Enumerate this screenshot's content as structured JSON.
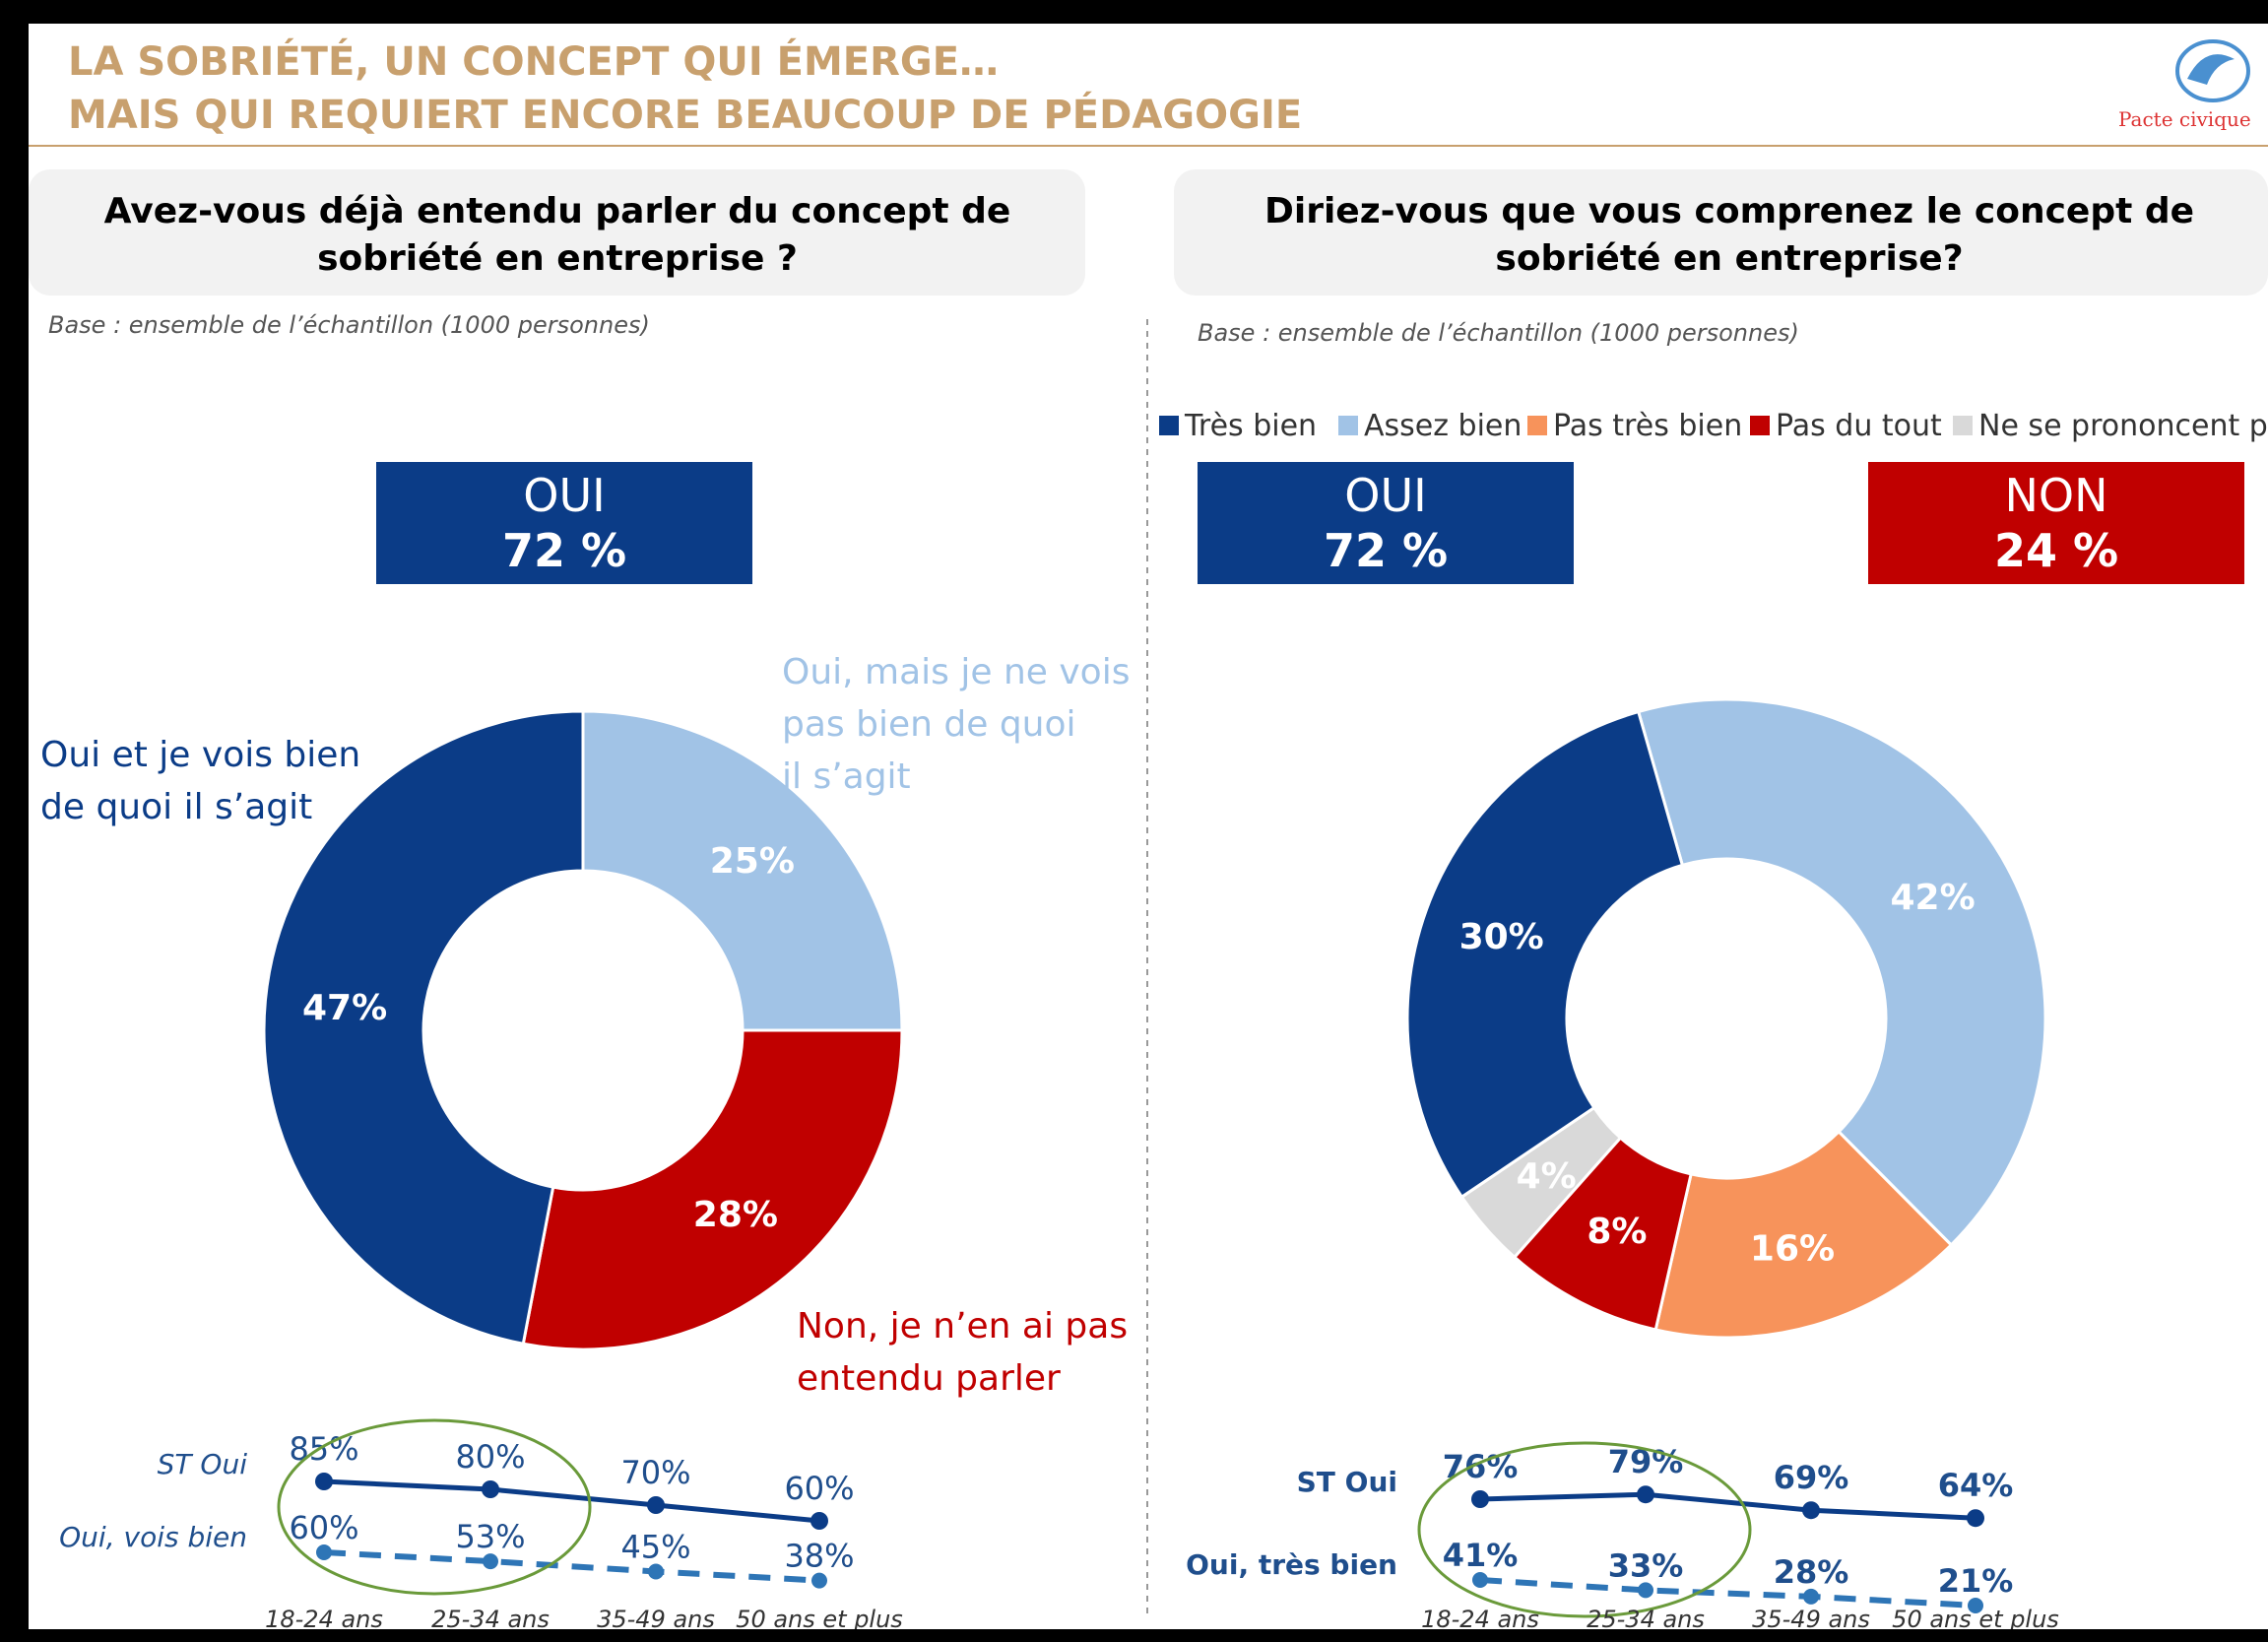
{
  "header": {
    "title_line1": "LA SOBRIÉTÉ, UN CONCEPT QUI ÉMERGE…",
    "title_line2": "MAIS QUI REQUIERT ENCORE BEAUCOUP DE PÉDAGOGIE",
    "logo_text": "Pacte civique"
  },
  "colors": {
    "dark_blue": "#0b3c87",
    "light_blue": "#a1c3e6",
    "red": "#c00000",
    "orange": "#f7935b",
    "grey": "#d9d9d9",
    "title_gold": "#c8a06e",
    "green_ring": "#6a9a3a"
  },
  "chart_data": [
    {
      "type": "pie",
      "title": "Avez-vous déjà entendu parler du concept de sobriété en entreprise ?",
      "title_lines": [
        "Avez-vous déjà entendu parler du concept de",
        "sobriété en entreprise ?"
      ],
      "base_note": "Base : ensemble de l’échantillon (1000 personnes)",
      "summary_boxes": [
        {
          "label": "OUI",
          "value": "72 %",
          "color": "#0b3c87"
        }
      ],
      "slices": [
        {
          "label": "Oui, mais je ne vois pas bien de quoi il s’agit",
          "label_lines": [
            "Oui, mais je ne vois",
            "pas bien de quoi",
            "il s’agit"
          ],
          "value": 25,
          "display": "25%",
          "color": "#a1c3e6"
        },
        {
          "label": "Non, je n’en ai pas entendu parler",
          "label_lines": [
            "Non, je n’en ai pas",
            "entendu parler"
          ],
          "value": 28,
          "display": "28%",
          "color": "#c00000"
        },
        {
          "label": "Oui et je vois bien de quoi il s’agit",
          "label_lines": [
            "Oui et je vois bien",
            "de quoi il s’agit"
          ],
          "value": 47,
          "display": "47%",
          "color": "#0b3c87"
        }
      ]
    },
    {
      "type": "pie",
      "title": "Diriez-vous que vous comprenez le concept de sobriété en entreprise?",
      "title_lines": [
        "Diriez-vous que vous comprenez le concept de",
        "sobriété en entreprise?"
      ],
      "base_note": "Base : ensemble de l’échantillon (1000 personnes)",
      "legend": [
        "Très bien",
        "Assez bien",
        "Pas très bien",
        "Pas du tout",
        "Ne se prononcent pa"
      ],
      "summary_boxes": [
        {
          "label": "OUI",
          "value": "72 %",
          "color": "#0b3c87"
        },
        {
          "label": "NON",
          "value": "24 %",
          "color": "#c00000"
        }
      ],
      "slices": [
        {
          "label": "Assez bien",
          "value": 42,
          "display": "42%",
          "color": "#a1c3e6"
        },
        {
          "label": "Pas très bien",
          "value": 16,
          "display": "16%",
          "color": "#f7935b"
        },
        {
          "label": "Pas du tout",
          "value": 8,
          "display": "8%",
          "color": "#c00000"
        },
        {
          "label": "Ne se prononcent pas",
          "value": 4,
          "display": "4%",
          "color": "#d9d9d9"
        },
        {
          "label": "Très bien",
          "value": 30,
          "display": "30%",
          "color": "#0b3c87"
        }
      ]
    },
    {
      "type": "line",
      "categories": [
        "18-24 ans",
        "25-34 ans",
        "35-49 ans",
        "50 ans et plus"
      ],
      "series": [
        {
          "name": "ST Oui",
          "values": [
            85,
            80,
            70,
            60
          ],
          "style": "solid"
        },
        {
          "name": "Oui, vois bien",
          "values": [
            60,
            53,
            45,
            38
          ],
          "style": "dashed"
        }
      ]
    },
    {
      "type": "line",
      "categories": [
        "18-24 ans",
        "25-34 ans",
        "35-49 ans",
        "50 ans et plus"
      ],
      "series": [
        {
          "name": "ST Oui",
          "values": [
            76,
            79,
            69,
            64
          ],
          "style": "solid"
        },
        {
          "name": "Oui, très bien",
          "values": [
            41,
            33,
            28,
            21
          ],
          "style": "dashed"
        }
      ]
    }
  ]
}
